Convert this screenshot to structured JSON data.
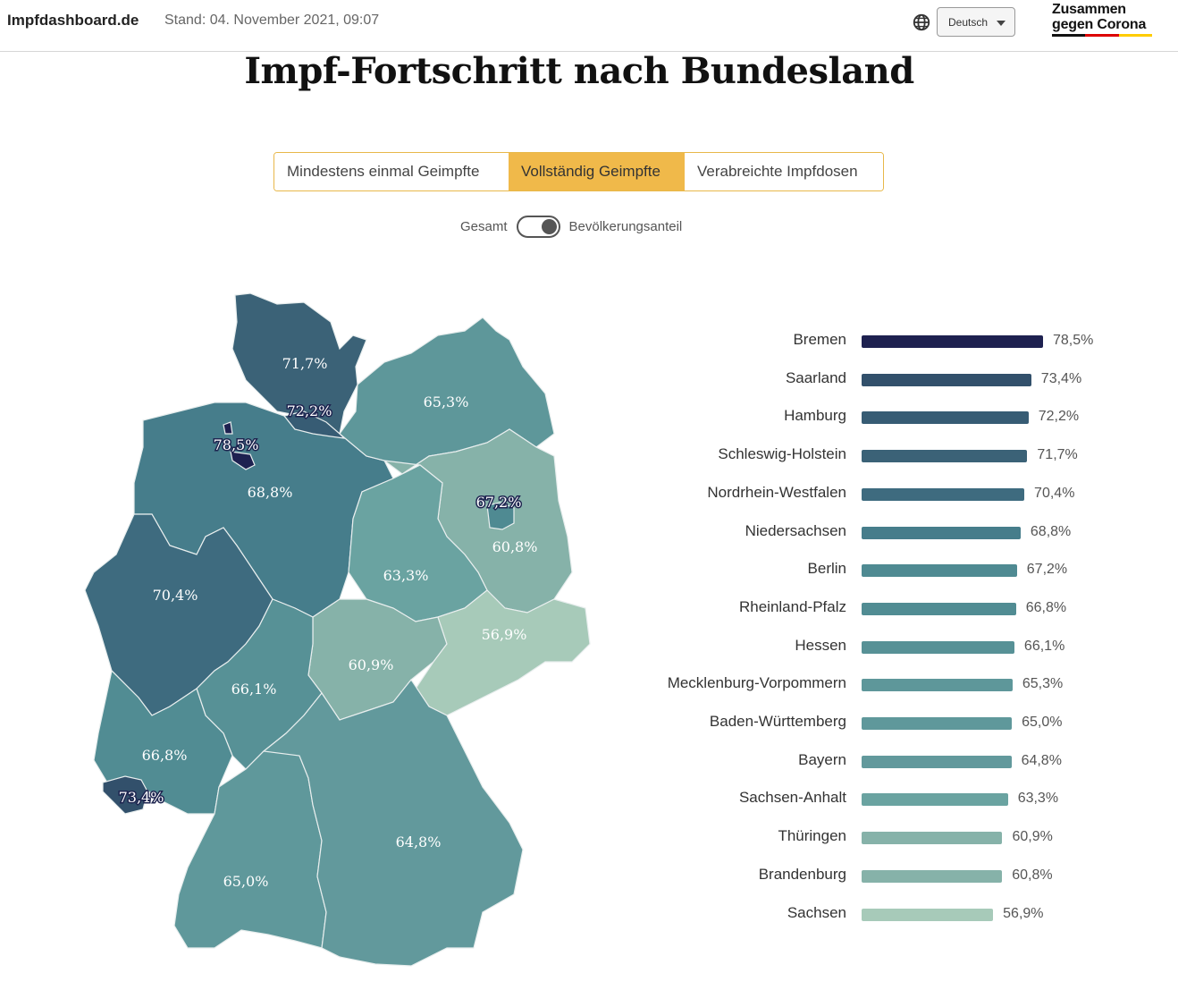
{
  "header": {
    "brand": "Impfdashboard.de",
    "stand": "Stand: 04. November 2021, 09:07",
    "globe_icon": "globe-icon",
    "language": "Deutsch",
    "logo_line1": "Zusammen",
    "logo_line2": "gegen Corona",
    "logo_colors": [
      "#111111",
      "#dd0000",
      "#ffcc00"
    ]
  },
  "page": {
    "title": "Impf-Fortschritt nach Bundesland"
  },
  "tabs": [
    {
      "label": "Mindestens einmal Geimpfte",
      "active": false
    },
    {
      "label": "Vollständig Geimpfte",
      "active": true
    },
    {
      "label": "Verabreichte Impfdosen",
      "active": false
    }
  ],
  "toggle": {
    "left_label": "Gesamt",
    "right_label": "Bevölkerungsanteil",
    "state": "right"
  },
  "colors": {
    "accent": "#f0b94a",
    "map_border": "#e8eeee"
  },
  "chart_data": [
    {
      "type": "heatmap",
      "title": "Impf-Fortschritt nach Bundesland (Karte)",
      "unit": "%",
      "regions": [
        {
          "name": "Schleswig-Holstein",
          "value": 71.7,
          "label": "71,7%",
          "color": "#3b6277"
        },
        {
          "name": "Hamburg",
          "value": 72.2,
          "label": "72,2%",
          "color": "#375c74"
        },
        {
          "name": "Mecklenburg-Vorpommern",
          "value": 65.3,
          "label": "65,3%",
          "color": "#5e979a"
        },
        {
          "name": "Bremen",
          "value": 78.5,
          "label": "78,5%",
          "color": "#1e2150"
        },
        {
          "name": "Niedersachsen",
          "value": 68.8,
          "label": "68,8%",
          "color": "#467d8b"
        },
        {
          "name": "Brandenburg",
          "value": 60.8,
          "label": "60,8%",
          "color": "#86b2a9"
        },
        {
          "name": "Berlin",
          "value": 67.2,
          "label": "67,2%",
          "color": "#4f8a92"
        },
        {
          "name": "Sachsen-Anhalt",
          "value": 63.3,
          "label": "63,3%",
          "color": "#6aa3a1"
        },
        {
          "name": "Nordrhein-Westfalen",
          "value": 70.4,
          "label": "70,4%",
          "color": "#3e6b7f"
        },
        {
          "name": "Thüringen",
          "value": 60.9,
          "label": "60,9%",
          "color": "#86b2a9"
        },
        {
          "name": "Sachsen",
          "value": 56.9,
          "label": "56,9%",
          "color": "#a7cab9"
        },
        {
          "name": "Hessen",
          "value": 66.1,
          "label": "66,1%",
          "color": "#579196"
        },
        {
          "name": "Rheinland-Pfalz",
          "value": 66.8,
          "label": "66,8%",
          "color": "#518c93"
        },
        {
          "name": "Saarland",
          "value": 73.4,
          "label": "73,4%",
          "color": "#32506b"
        },
        {
          "name": "Baden-Württemberg",
          "value": 65.0,
          "label": "65,0%",
          "color": "#5f989b"
        },
        {
          "name": "Bayern",
          "value": 64.8,
          "label": "64,8%",
          "color": "#62999c"
        }
      ]
    },
    {
      "type": "bar",
      "orientation": "horizontal",
      "title": "Vollständig Geimpfte – Bevölkerungsanteil",
      "categories": [
        "Bremen",
        "Saarland",
        "Hamburg",
        "Schleswig-Holstein",
        "Nordrhein-Westfalen",
        "Niedersachsen",
        "Berlin",
        "Rheinland-Pfalz",
        "Hessen",
        "Mecklenburg-Vorpommern",
        "Baden-Württemberg",
        "Bayern",
        "Sachsen-Anhalt",
        "Thüringen",
        "Brandenburg",
        "Sachsen"
      ],
      "values": [
        78.5,
        73.4,
        72.2,
        71.7,
        70.4,
        68.8,
        67.2,
        66.8,
        66.1,
        65.3,
        65.0,
        64.8,
        63.3,
        60.9,
        60.8,
        56.9
      ],
      "value_labels": [
        "78,5%",
        "73,4%",
        "72,2%",
        "71,7%",
        "70,4%",
        "68,8%",
        "67,2%",
        "66,8%",
        "66,1%",
        "65,3%",
        "65,0%",
        "64,8%",
        "63,3%",
        "60,9%",
        "60,8%",
        "56,9%"
      ],
      "colors": [
        "#1e2150",
        "#32506b",
        "#375c74",
        "#3b6277",
        "#3e6b7f",
        "#467d8b",
        "#4f8a92",
        "#518c93",
        "#579196",
        "#5e979a",
        "#5f989b",
        "#62999c",
        "#6aa3a1",
        "#86b2a9",
        "#86b2a9",
        "#a7cab9"
      ],
      "xlim": [
        0,
        100
      ],
      "xlabel": "",
      "ylabel": "",
      "grid": false,
      "legend": "none"
    }
  ]
}
